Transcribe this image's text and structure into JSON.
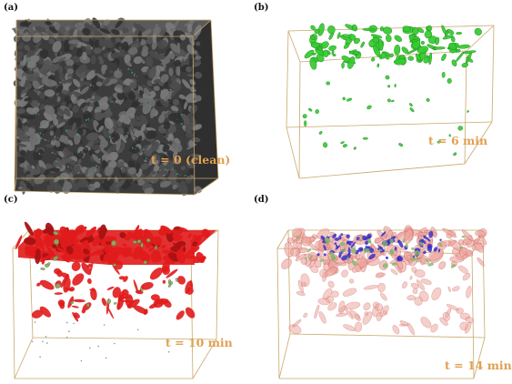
{
  "panels": [
    {
      "id": "a",
      "label": "(a)",
      "time": "t = 0 (clean)",
      "fill": "#3f3f3f",
      "accent": "#28b078"
    },
    {
      "id": "b",
      "label": "(b)",
      "time": "t = 6 min",
      "fill": "#33cc2e"
    },
    {
      "id": "c",
      "label": "(c)",
      "time": "t = 10 min",
      "fill": "#e01b1b",
      "accent": "#8fb36a"
    },
    {
      "id": "d",
      "label": "(d)",
      "time": "t = 14 min",
      "fill": "#eea8a0",
      "accent": "#3a30c8"
    }
  ],
  "colors": {
    "box_edge": "#c9a86a",
    "time_label": "#e0a050",
    "background": "#ffffff"
  }
}
